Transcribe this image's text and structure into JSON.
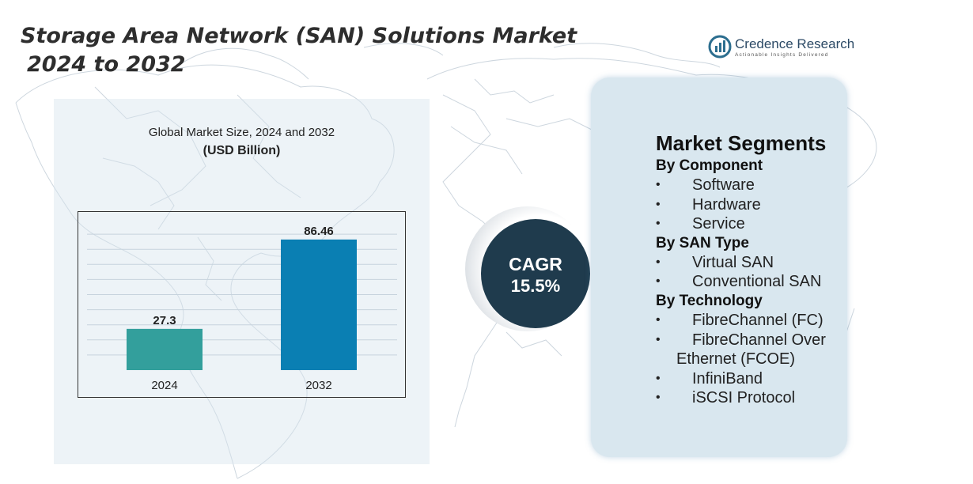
{
  "title": {
    "line1": "Storage Area Network (SAN) Solutions Market",
    "line2": "2024 to 2032"
  },
  "logo": {
    "name": "Credence Research",
    "tagline": "Actionable Insights Delivered"
  },
  "chart_panel": {
    "subtitle": "Global Market Size, 2024 and 2032",
    "unit": "(USD Billion)"
  },
  "chart_data": {
    "type": "bar",
    "categories": [
      "2024",
      "2032"
    ],
    "values": [
      27.3,
      86.46
    ],
    "value_labels": [
      "27.3",
      "86.46"
    ],
    "title": "Global Market Size, 2024 and 2032",
    "ylabel": "(USD Billion)",
    "xlabel": "",
    "ylim": [
      0,
      100
    ],
    "grid": true,
    "colors": [
      "#339f9c",
      "#0a7fb3"
    ]
  },
  "cagr": {
    "label": "CAGR",
    "value": "15.5%"
  },
  "segments": {
    "heading": "Market Segments",
    "groups": [
      {
        "title": "By Component",
        "items": [
          "Software",
          "Hardware",
          "Service"
        ]
      },
      {
        "title": "By SAN Type",
        "items": [
          "Virtual SAN",
          "Conventional SAN"
        ]
      },
      {
        "title": "By Technology",
        "items": [
          "FibreChannel (FC)",
          "FibreChannel Over",
          "Ethernet (FCOE)",
          "InfiniBand",
          "iSCSI Protocol"
        ]
      }
    ],
    "bullet": "•"
  },
  "colors": {
    "title": "#2e2e2e",
    "cagr_circle": "#1f3b4d",
    "segment_panel": "#d9e7ef",
    "chart_panel": "#e4eef5",
    "map_lines": "#c9d3db",
    "logo_text": "#2c4a66"
  }
}
